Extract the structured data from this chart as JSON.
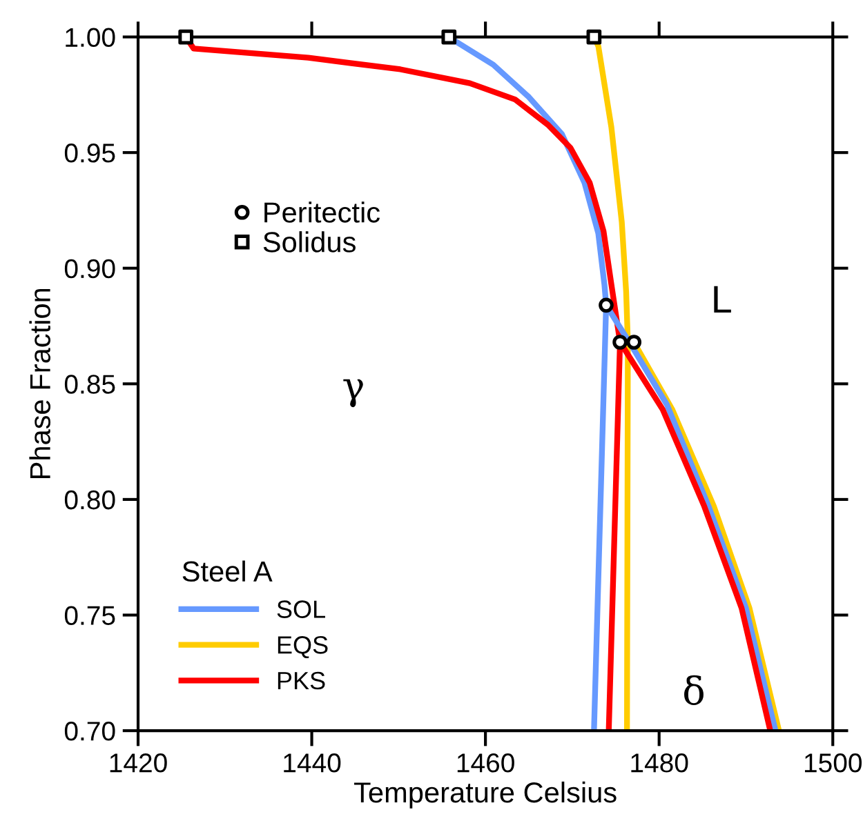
{
  "chart_data": {
    "type": "line",
    "xlabel": "Temperature Celsius",
    "ylabel": "Phase Fraction",
    "legend_title": "Steel A",
    "legend": "bottom left",
    "grid": false,
    "xlim": [
      1420,
      1500
    ],
    "xticks": [
      1420,
      1440,
      1460,
      1480,
      1500
    ],
    "ylim": [
      0.7,
      1.0
    ],
    "yticks": [
      {
        "value": 0.7,
        "label": "0.70"
      },
      {
        "value": 0.75,
        "label": "0.75"
      },
      {
        "value": 0.8,
        "label": "0.80"
      },
      {
        "value": 0.85,
        "label": "0.85"
      },
      {
        "value": 0.9,
        "label": "0.90"
      },
      {
        "value": 0.95,
        "label": "0.95"
      },
      {
        "value": 1.0,
        "label": "1.00"
      }
    ],
    "series": [
      {
        "name": "SOL",
        "color": "#6699ff",
        "x": [
          1472.5,
          1473.9,
          1473.7,
          1473.0,
          1471.4,
          1468.8,
          1465.0,
          1460.9,
          1456.6,
          1455.8
        ],
        "values": [
          0.7,
          0.884,
          0.893,
          0.915,
          0.937,
          0.958,
          0.974,
          0.988,
          0.998,
          1.0
        ]
      },
      {
        "name": "EQS",
        "color": "#ffcc00",
        "x": [
          1476.3,
          1476.4,
          1476.2,
          1475.7,
          1474.5,
          1473.0,
          1472.5
        ],
        "values": [
          0.7,
          0.868,
          0.89,
          0.92,
          0.961,
          0.996,
          1.0
        ]
      },
      {
        "name": "PKS",
        "color": "#ff0000",
        "x": [
          1474.2,
          1475.5,
          1474.5,
          1473.6,
          1472.0,
          1469.8,
          1467.2,
          1463.4,
          1458.2,
          1450.2,
          1439.6,
          1426.4,
          1425.5
        ],
        "values": [
          0.7,
          0.868,
          0.893,
          0.916,
          0.937,
          0.952,
          0.962,
          0.973,
          0.98,
          0.986,
          0.991,
          0.995,
          1.0
        ]
      },
      {
        "color": "#ffcc00",
        "x": [
          1477.1,
          1481.5,
          1486.3,
          1490.4,
          1493.8
        ],
        "values": [
          0.868,
          0.839,
          0.797,
          0.753,
          0.7
        ]
      },
      {
        "color": "#6699ff",
        "x": [
          1473.9,
          1476.9,
          1480.9,
          1485.7,
          1490.0,
          1493.4
        ],
        "values": [
          0.884,
          0.866,
          0.841,
          0.797,
          0.753,
          0.7
        ]
      },
      {
        "color": "#ff0000",
        "x": [
          1475.5,
          1480.4,
          1485.2,
          1489.5,
          1492.8
        ],
        "values": [
          0.868,
          0.839,
          0.797,
          0.753,
          0.7
        ]
      },
      {
        "name": "Peritectic",
        "type": "scatter",
        "marker": "circle",
        "color": "#000000",
        "x": [
          1473.9,
          1475.5,
          1477.1
        ],
        "values": [
          0.884,
          0.868,
          0.868
        ]
      },
      {
        "name": "Solidus",
        "type": "scatter",
        "marker": "square",
        "color": "#000000",
        "x": [
          1425.5,
          1455.8,
          1472.5
        ],
        "values": [
          1.0,
          1.0,
          1.0
        ]
      }
    ],
    "annotations": [
      "L",
      "γ",
      "δ"
    ]
  }
}
